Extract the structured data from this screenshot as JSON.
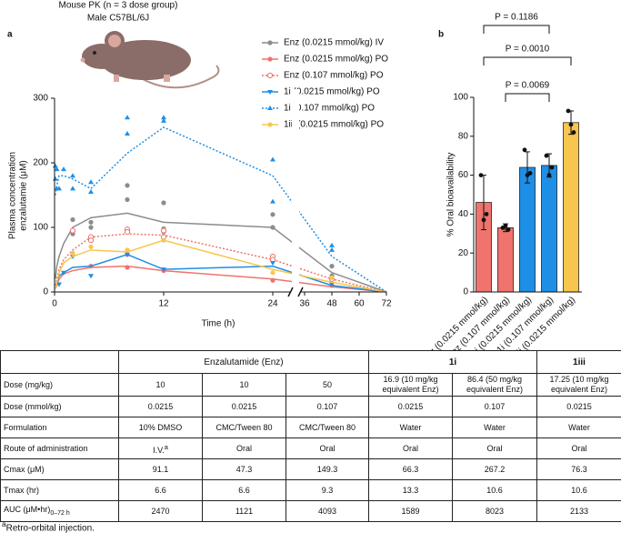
{
  "chart_data": [
    {
      "type": "line",
      "panel_label": "a",
      "title": "Mouse PK (n = 3 dose group)",
      "subtitle": "Male C57BL/6J",
      "x_label": "Time (h)",
      "y_label": [
        "Plasma concentration",
        "enzalutamie (μM)"
      ],
      "x": [
        0.083,
        0.25,
        0.5,
        1,
        2,
        4,
        8,
        12,
        24,
        48,
        72
      ],
      "xlim": [
        0,
        72
      ],
      "xbreak": [
        26,
        34
      ],
      "xticks": [
        0,
        12,
        24,
        36,
        48,
        60,
        72
      ],
      "ylim": [
        0,
        300
      ],
      "yticks": [
        0,
        100,
        200,
        300
      ],
      "series": [
        {
          "name": "Enz (0.0215 mmol/kg) IV",
          "color": "#8c8c8c",
          "line_style": "solid",
          "marker": "circle",
          "values": [
            20,
            40,
            55,
            75,
            100,
            115,
            122,
            108,
            100,
            30,
            0
          ],
          "points": {
            "x": [
              2,
              2,
              4,
              4,
              8,
              8,
              12,
              12,
              12,
              24,
              24,
              48,
              48
            ],
            "y": [
              90,
              112,
              100,
              108,
              165,
              143,
              138,
              98,
              93,
              120,
              100,
              40,
              25
            ]
          }
        },
        {
          "name": "Enz (0.0215 mmol/kg) PO",
          "color": "#f0736d",
          "line_style": "solid",
          "marker": "circle",
          "values": [
            5,
            10,
            20,
            28,
            33,
            38,
            40,
            33,
            20,
            8,
            0
          ],
          "points": {
            "x": [
              4,
              8,
              8,
              12,
              24,
              48
            ],
            "y": [
              40,
              58,
              38,
              33,
              18,
              10
            ]
          }
        },
        {
          "name": "Enz (0.107 mmol/kg) PO",
          "color": "#f0736d",
          "line_style": "dotted",
          "marker": "open-circle",
          "values": [
            10,
            20,
            35,
            50,
            65,
            85,
            90,
            88,
            50,
            20,
            0
          ],
          "points": {
            "x": [
              2,
              4,
              4,
              8,
              8,
              12,
              12,
              24,
              24,
              48
            ],
            "y": [
              95,
              85,
              80,
              97,
              93,
              95,
              85,
              55,
              50,
              20
            ]
          }
        },
        {
          "name": "1i (0.0215 mmol/kg)  PO",
          "color": "#1e8fe6",
          "line_style": "solid",
          "marker": "triangle-down",
          "values": [
            10,
            15,
            25,
            30,
            38,
            40,
            58,
            35,
            40,
            10,
            0
          ],
          "points": {
            "x": [
              0.5,
              1,
              2,
              4,
              8,
              12,
              24,
              48
            ],
            "y": [
              12,
              30,
              55,
              25,
              58,
              35,
              45,
              12
            ]
          }
        },
        {
          "name": "1i (0.107 mmol/kg) PO",
          "color": "#1e8fe6",
          "line_style": "dotted",
          "marker": "triangle-up",
          "values": [
            150,
            165,
            180,
            180,
            175,
            160,
            215,
            255,
            180,
            55,
            0
          ],
          "points": {
            "x": [
              0.083,
              0.083,
              0.25,
              0.25,
              0.5,
              1,
              2,
              2,
              4,
              4,
              8,
              8,
              12,
              12,
              24,
              24,
              48,
              48
            ],
            "y": [
              195,
              175,
              190,
              160,
              160,
              190,
              180,
              160,
              170,
              155,
              270,
              245,
              270,
              265,
              205,
              140,
              72,
              65
            ]
          }
        },
        {
          "name": "1iii (0.0215 mmol/kg) PO",
          "color": "#f8c64e",
          "line_style": "solid",
          "marker": "circle",
          "values": [
            5,
            15,
            30,
            45,
            55,
            65,
            62,
            80,
            35,
            15,
            0
          ],
          "points": {
            "x": [
              2,
              4,
              8,
              12,
              24,
              48
            ],
            "y": [
              60,
              70,
              65,
              80,
              30,
              22
            ]
          }
        }
      ]
    },
    {
      "type": "bar",
      "panel_label": "b",
      "y_label": "% Oral bioavailability",
      "categories": [
        "Enz (0.0215 mmol/kg)",
        "Enz (0.107 mmol/kg)",
        "1i (0.0215 mmol/kg)",
        "1i (0.107 mmol/kg)",
        "1iii (0.0215 mmol/kg)"
      ],
      "values": [
        46,
        33,
        64,
        65,
        87
      ],
      "errors": [
        14,
        2,
        8,
        6,
        6
      ],
      "colors": [
        "#f0736d",
        "#f0736d",
        "#1e8fe6",
        "#1e8fe6",
        "#f8c64e"
      ],
      "points": [
        [
          60,
          37,
          40
        ],
        [
          33,
          34,
          32
        ],
        [
          73,
          60,
          61
        ],
        [
          70,
          60,
          64
        ],
        [
          93,
          86,
          82
        ]
      ],
      "ylim": [
        0,
        100
      ],
      "yticks": [
        0,
        20,
        40,
        60,
        80,
        100
      ],
      "comparisons": [
        {
          "pair": [
            0,
            3
          ],
          "label": "P = 0.1186"
        },
        {
          "pair": [
            0,
            4
          ],
          "label": "P = 0.0010"
        },
        {
          "pair": [
            1,
            3
          ],
          "label": "P = 0.0069"
        }
      ]
    }
  ],
  "table": {
    "group_headers": [
      "Enzalutamide (Enz)",
      "1i",
      "1iii"
    ],
    "rows": [
      {
        "label": "Dose (mg/kg)",
        "cells": [
          "10",
          "10",
          "50",
          "16.9 (10 mg/kg equivalent Enz)",
          "86.4 (50 mg/kg equivalent Enz)",
          "17.25 (10 mg/kg equivalent Enz)"
        ]
      },
      {
        "label": "Dose (mmol/kg)",
        "cells": [
          "0.0215",
          "0.0215",
          "0.107",
          "0.0215",
          "0.107",
          "0.0215"
        ]
      },
      {
        "label": "Formulation",
        "cells": [
          "10% DMSO",
          "CMC/Tween 80",
          "CMC/Tween 80",
          "Water",
          "Water",
          "Water"
        ]
      },
      {
        "label": "Route of administration",
        "cells": [
          {
            "text": "I.V.",
            "note": "a"
          },
          "Oral",
          "Oral",
          "Oral",
          "Oral",
          "Oral"
        ]
      },
      {
        "label": "Cmax (μM)",
        "cells": [
          "91.1",
          "47.3",
          "149.3",
          "66.3",
          "267.2",
          "76.3"
        ]
      },
      {
        "label": "Tmax (hr)",
        "cells": [
          "6.6",
          "6.6",
          "9.3",
          "13.3",
          "10.6",
          "10.6"
        ]
      },
      {
        "label": {
          "text": "AUC (μM•hr)",
          "sub": "0–72 h"
        },
        "cells": [
          "2470",
          "1121",
          "4093",
          "1589",
          "8023",
          "2133"
        ]
      }
    ]
  },
  "footnote": {
    "mark": "a",
    "text": "Retro-orbital injection."
  }
}
